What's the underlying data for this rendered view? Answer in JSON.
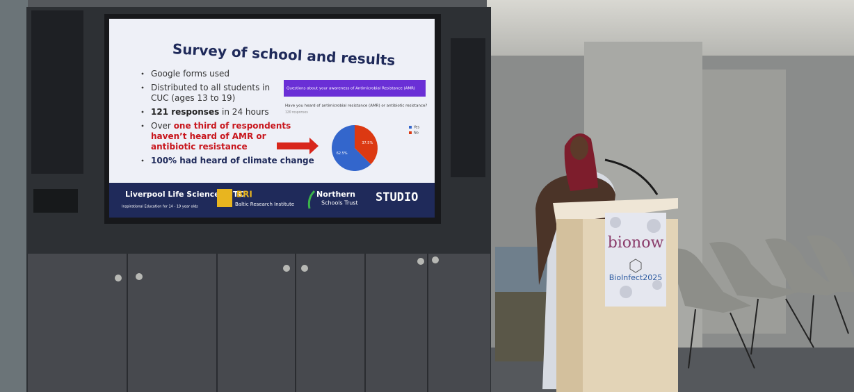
{
  "slide": {
    "title": "Survey of school and results",
    "bullets": [
      {
        "lines": [
          [
            {
              "text": "Google forms used"
            }
          ]
        ]
      },
      {
        "lines": [
          [
            {
              "text": "Distributed to all students in"
            }
          ],
          [
            {
              "text": "CUC (ages 13 to 19)"
            }
          ]
        ]
      },
      {
        "lines": [
          [
            {
              "text": "121 responses",
              "style": "bold"
            },
            {
              "text": " in 24 hours"
            }
          ]
        ]
      },
      {
        "lines": [
          [
            {
              "text": "Over "
            },
            {
              "text": "one third of respondents",
              "style": "red"
            }
          ],
          [
            {
              "text": "haven’t heard of AMR or",
              "style": "red"
            }
          ],
          [
            {
              "text": "antibiotic resistance",
              "style": "red"
            }
          ]
        ]
      },
      {
        "lines": [
          [
            {
              "text": "100% had heard of climate change",
              "style": "navy"
            }
          ]
        ]
      }
    ],
    "form": {
      "header": "Questions about your awareness of Antimicrobial Resistance (AMR)",
      "question": "Have you heard of antimicrobial resistance (AMR) or antibiotic resistance?",
      "responses": "120 responses"
    },
    "pie": {
      "type": "pie",
      "categories": [
        "Yes",
        "No"
      ],
      "values": [
        62.5,
        37.5
      ],
      "value_labels": [
        "62.5%",
        "37.5%"
      ],
      "colors": [
        "#3366cc",
        "#dc3912"
      ]
    },
    "footer": {
      "logo1": "Liverpool Life Sciences UTC",
      "logo1_sub": "Inspirational Education for 14 - 19 year olds",
      "logo2": "BRI",
      "logo2_sub": "Baltic Research Institute",
      "logo3": "Northern",
      "logo3_sub": "Schools Trust",
      "logo4": "STUDIO"
    }
  },
  "podium": {
    "brand": "bionow",
    "event": "BioInfect2025"
  }
}
